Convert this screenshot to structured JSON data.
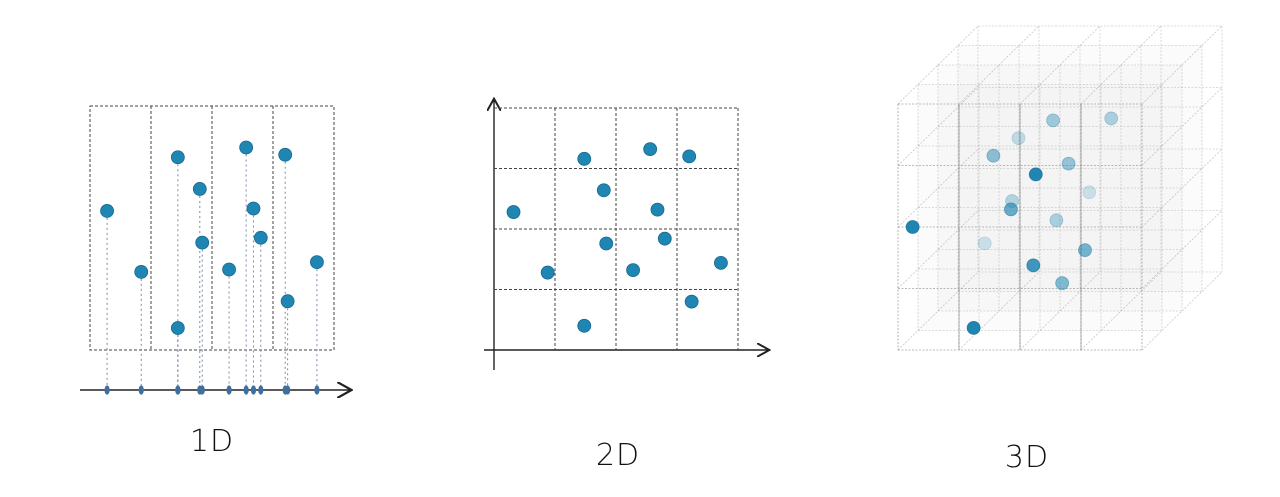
{
  "colors": {
    "dot": "#1f86b4",
    "dot_stroke": "#16698f",
    "axis_dot": "#3f6f9c",
    "grid": "#444444",
    "axis": "#222222",
    "cube_line": "#9a9a9a",
    "cube_fill": "#e9e9e9"
  },
  "panels": [
    {
      "id": "1d",
      "caption": "1D",
      "grid": {
        "cols": 4,
        "rows": 1
      },
      "points": [
        [
          0.07,
          0.43
        ],
        [
          0.21,
          0.68
        ],
        [
          0.36,
          0.21
        ],
        [
          0.36,
          0.91
        ],
        [
          0.45,
          0.34
        ],
        [
          0.46,
          0.56
        ],
        [
          0.57,
          0.67
        ],
        [
          0.64,
          0.17
        ],
        [
          0.67,
          0.42
        ],
        [
          0.7,
          0.54
        ],
        [
          0.8,
          0.2
        ],
        [
          0.81,
          0.8
        ],
        [
          0.93,
          0.64
        ]
      ]
    },
    {
      "id": "2d",
      "caption": "2D",
      "grid": {
        "cols": 4,
        "rows": 4
      },
      "points": [
        [
          0.08,
          0.43
        ],
        [
          0.22,
          0.68
        ],
        [
          0.37,
          0.21
        ],
        [
          0.37,
          0.9
        ],
        [
          0.45,
          0.34
        ],
        [
          0.46,
          0.56
        ],
        [
          0.57,
          0.67
        ],
        [
          0.64,
          0.17
        ],
        [
          0.67,
          0.42
        ],
        [
          0.7,
          0.54
        ],
        [
          0.8,
          0.2
        ],
        [
          0.81,
          0.8
        ],
        [
          0.93,
          0.64
        ]
      ]
    },
    {
      "id": "3d",
      "caption": "3D",
      "grid": {
        "cols": 4,
        "rows": 4,
        "depth": 4
      },
      "points": [
        [
          0.06,
          0.5,
          0.0,
          1.0
        ],
        [
          0.31,
          0.91,
          0.0,
          1.0
        ],
        [
          0.54,
          0.31,
          0.3,
          1.0
        ],
        [
          0.53,
          0.68,
          0.3,
          0.85
        ],
        [
          0.43,
          0.46,
          0.4,
          0.65
        ],
        [
          0.35,
          0.25,
          0.5,
          0.5
        ],
        [
          0.57,
          0.13,
          0.8,
          0.4
        ],
        [
          0.65,
          0.29,
          0.6,
          0.45
        ],
        [
          0.6,
          0.52,
          0.6,
          0.35
        ],
        [
          0.64,
          0.76,
          0.4,
          0.55
        ],
        [
          0.75,
          0.61,
          0.2,
          0.6
        ],
        [
          0.8,
          0.13,
          0.9,
          0.35
        ],
        [
          0.42,
          0.21,
          0.9,
          0.25
        ],
        [
          0.41,
          0.45,
          0.7,
          0.3
        ],
        [
          0.29,
          0.63,
          0.8,
          0.2
        ],
        [
          0.71,
          0.43,
          0.9,
          0.2
        ]
      ]
    }
  ]
}
